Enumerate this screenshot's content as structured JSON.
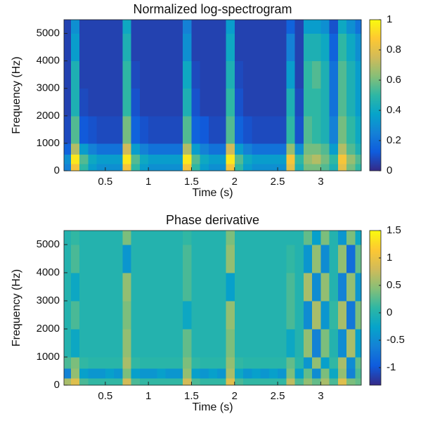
{
  "chart_data": [
    {
      "type": "heatmap",
      "title": "Normalized log-spectrogram",
      "x_label": "Time (s)",
      "y_label": "Frequency (Hz)",
      "colormap": [
        "#352a87",
        "#0f5cdd",
        "#1481d6",
        "#06a4ca",
        "#2eb7a4",
        "#87bf77",
        "#d1bb59",
        "#fec832",
        "#f9fb0e"
      ],
      "x": [
        0.02,
        0.1,
        0.2,
        0.3,
        0.4,
        0.5,
        0.6,
        0.7,
        0.8,
        0.9,
        1.0,
        1.1,
        1.2,
        1.3,
        1.4,
        1.5,
        1.6,
        1.7,
        1.8,
        1.9,
        2.0,
        2.1,
        2.2,
        2.3,
        2.4,
        2.5,
        2.6,
        2.7,
        2.8,
        2.9,
        3.0,
        3.1,
        3.2,
        3.3,
        3.4,
        3.47
      ],
      "y": [
        0,
        250,
        600,
        1000,
        2000,
        3000,
        4000,
        5000,
        5500
      ],
      "z": [
        [
          0.25,
          0.85,
          0.5,
          0.35,
          0.3,
          0.3,
          0.3,
          0.85,
          0.5,
          0.35,
          0.3,
          0.3,
          0.3,
          0.3,
          0.85,
          0.5,
          0.35,
          0.3,
          0.3,
          0.85,
          0.5,
          0.35,
          0.3,
          0.3,
          0.3,
          0.3,
          0.8,
          0.45,
          0.6,
          0.6,
          0.55,
          0.45,
          0.8,
          0.6,
          0.5
        ],
        [
          0.3,
          0.95,
          0.55,
          0.4,
          0.35,
          0.35,
          0.35,
          0.95,
          0.55,
          0.4,
          0.35,
          0.35,
          0.35,
          0.35,
          0.95,
          0.55,
          0.4,
          0.35,
          0.35,
          0.95,
          0.55,
          0.4,
          0.35,
          0.35,
          0.35,
          0.35,
          0.85,
          0.5,
          0.65,
          0.7,
          0.6,
          0.5,
          0.85,
          0.65,
          0.55
        ],
        [
          0.15,
          0.7,
          0.35,
          0.25,
          0.2,
          0.2,
          0.2,
          0.75,
          0.35,
          0.25,
          0.2,
          0.2,
          0.2,
          0.2,
          0.7,
          0.35,
          0.25,
          0.2,
          0.2,
          0.75,
          0.35,
          0.25,
          0.2,
          0.2,
          0.2,
          0.2,
          0.65,
          0.3,
          0.6,
          0.6,
          0.55,
          0.35,
          0.7,
          0.55,
          0.45
        ],
        [
          0.08,
          0.55,
          0.12,
          0.1,
          0.08,
          0.08,
          0.08,
          0.6,
          0.15,
          0.1,
          0.08,
          0.08,
          0.08,
          0.08,
          0.55,
          0.15,
          0.12,
          0.08,
          0.08,
          0.55,
          0.15,
          0.1,
          0.08,
          0.08,
          0.08,
          0.08,
          0.5,
          0.1,
          0.55,
          0.5,
          0.45,
          0.25,
          0.6,
          0.5,
          0.4
        ],
        [
          0.06,
          0.45,
          0.08,
          0.06,
          0.06,
          0.06,
          0.06,
          0.5,
          0.1,
          0.06,
          0.06,
          0.06,
          0.06,
          0.06,
          0.45,
          0.1,
          0.06,
          0.06,
          0.06,
          0.5,
          0.1,
          0.06,
          0.06,
          0.06,
          0.06,
          0.06,
          0.45,
          0.08,
          0.5,
          0.5,
          0.45,
          0.2,
          0.55,
          0.45,
          0.35
        ],
        [
          0.06,
          0.45,
          0.06,
          0.06,
          0.06,
          0.06,
          0.06,
          0.5,
          0.08,
          0.06,
          0.06,
          0.06,
          0.06,
          0.06,
          0.4,
          0.08,
          0.06,
          0.06,
          0.06,
          0.45,
          0.08,
          0.06,
          0.06,
          0.06,
          0.06,
          0.06,
          0.35,
          0.06,
          0.5,
          0.55,
          0.45,
          0.2,
          0.55,
          0.45,
          0.35
        ],
        [
          0.06,
          0.35,
          0.06,
          0.06,
          0.06,
          0.06,
          0.06,
          0.45,
          0.06,
          0.06,
          0.06,
          0.06,
          0.06,
          0.06,
          0.3,
          0.06,
          0.06,
          0.06,
          0.06,
          0.4,
          0.06,
          0.06,
          0.06,
          0.06,
          0.06,
          0.06,
          0.25,
          0.06,
          0.45,
          0.45,
          0.4,
          0.15,
          0.5,
          0.4,
          0.3
        ],
        [
          0.06,
          0.3,
          0.06,
          0.06,
          0.06,
          0.06,
          0.06,
          0.4,
          0.06,
          0.06,
          0.06,
          0.06,
          0.06,
          0.06,
          0.25,
          0.06,
          0.06,
          0.06,
          0.06,
          0.35,
          0.06,
          0.06,
          0.06,
          0.06,
          0.06,
          0.06,
          0.15,
          0.06,
          0.35,
          0.35,
          0.3,
          0.1,
          0.4,
          0.3,
          0.2
        ]
      ],
      "xlim": [
        0.02,
        3.47
      ],
      "ylim": [
        0,
        5500
      ],
      "xticks": [
        0.5,
        1,
        1.5,
        2,
        2.5,
        3
      ],
      "yticks": [
        0,
        1000,
        2000,
        3000,
        4000,
        5000
      ],
      "clim": [
        0,
        1
      ],
      "cticks": [
        0,
        0.2,
        0.4,
        0.6,
        0.8,
        1
      ]
    },
    {
      "type": "heatmap",
      "title": "Phase derivative",
      "x_label": "Time (s)",
      "y_label": "Frequency (Hz)",
      "colormap": [
        "#352a87",
        "#0f5cdd",
        "#1481d6",
        "#06a4ca",
        "#2eb7a4",
        "#87bf77",
        "#d1bb59",
        "#fec832",
        "#f9fb0e"
      ],
      "x": [
        0.02,
        0.1,
        0.2,
        0.3,
        0.4,
        0.5,
        0.6,
        0.7,
        0.8,
        0.9,
        1.0,
        1.1,
        1.2,
        1.3,
        1.4,
        1.5,
        1.6,
        1.7,
        1.8,
        1.9,
        2.0,
        2.1,
        2.2,
        2.3,
        2.4,
        2.5,
        2.6,
        2.7,
        2.8,
        2.9,
        3.0,
        3.1,
        3.2,
        3.3,
        3.4,
        3.47
      ],
      "y": [
        0,
        250,
        600,
        1000,
        2000,
        3000,
        4000,
        5000,
        5500
      ],
      "z": [
        [
          0.6,
          0.9,
          0.2,
          0.1,
          0.1,
          0.1,
          0.1,
          0.8,
          0.2,
          0.1,
          0.1,
          0.1,
          0.1,
          0.1,
          0.8,
          0.2,
          0.1,
          0.1,
          0.1,
          0.9,
          0.2,
          0.1,
          0.1,
          0.1,
          0.1,
          0.1,
          0.7,
          0.2,
          0.5,
          0.3,
          0.6,
          0.2,
          0.9,
          0.4,
          0.3
        ],
        [
          -0.6,
          0.5,
          -0.3,
          -0.4,
          -0.4,
          -0.3,
          -0.4,
          0.4,
          -0.3,
          -0.4,
          -0.4,
          -0.3,
          -0.4,
          -0.4,
          0.5,
          -0.3,
          -0.4,
          -0.3,
          -0.4,
          0.6,
          -0.2,
          -0.4,
          -0.3,
          -0.4,
          -0.3,
          -0.4,
          0.4,
          -0.3,
          0.3,
          -0.5,
          0.4,
          -0.2,
          0.5,
          -0.6,
          0.2
        ],
        [
          0.2,
          0.4,
          0.1,
          0.05,
          0.05,
          0.05,
          0.05,
          0.6,
          0.1,
          0.05,
          0.05,
          0.05,
          0.05,
          0.05,
          0.4,
          0.1,
          0.05,
          0.05,
          0.05,
          0.5,
          0.1,
          0.05,
          0.05,
          0.05,
          0.05,
          0.05,
          0.3,
          0.05,
          -0.4,
          0.5,
          -0.3,
          0.1,
          0.6,
          -0.5,
          0.3
        ],
        [
          0,
          -0.2,
          0,
          0,
          0,
          0,
          0,
          0.5,
          0,
          0,
          0,
          0,
          0,
          0,
          0.3,
          0,
          0,
          0,
          0,
          0.4,
          0,
          0,
          0,
          0,
          0,
          0,
          -0.2,
          0,
          0.5,
          -0.6,
          0.4,
          0,
          -0.5,
          0.6,
          -0.3
        ],
        [
          0,
          0.2,
          0,
          0,
          0,
          0,
          0,
          0.4,
          0,
          0,
          0,
          0,
          0,
          0,
          -0.2,
          0,
          0,
          0,
          0,
          0.5,
          0,
          0,
          0,
          0,
          0,
          0,
          0.2,
          0,
          -0.5,
          0.6,
          -0.4,
          0.1,
          0.6,
          -0.7,
          0.4
        ],
        [
          0,
          -0.2,
          0,
          0,
          0,
          0,
          0,
          0.5,
          0,
          0,
          0,
          0,
          0,
          0,
          0.2,
          0,
          0,
          0,
          0,
          -0.3,
          0,
          0,
          0,
          0,
          0,
          0,
          0.2,
          0,
          0.6,
          -0.5,
          0.5,
          0,
          -0.6,
          0.5,
          -0.4
        ],
        [
          0,
          0.2,
          0,
          0,
          0,
          0,
          0,
          -0.4,
          0,
          0,
          0,
          0,
          0,
          0,
          0.2,
          0,
          0,
          0,
          0,
          0.5,
          0,
          0,
          0,
          0,
          0,
          0,
          0.1,
          0,
          -0.4,
          0.5,
          -0.5,
          0,
          0.5,
          -0.8,
          0.3
        ],
        [
          0,
          0.1,
          0,
          0,
          0,
          0,
          0,
          0.4,
          0,
          0,
          0,
          0,
          0,
          0,
          0.1,
          0,
          0,
          0,
          0,
          0.4,
          0,
          0,
          0,
          0,
          0,
          0,
          0,
          0,
          0.3,
          -0.3,
          0.4,
          0,
          -0.4,
          0.4,
          -0.2
        ]
      ],
      "xlim": [
        0.02,
        3.47
      ],
      "ylim": [
        0,
        5500
      ],
      "xticks": [
        0.5,
        1,
        1.5,
        2,
        2.5,
        3
      ],
      "yticks": [
        0,
        1000,
        2000,
        3000,
        4000,
        5000
      ],
      "clim": [
        -1.32,
        1.5
      ],
      "cticks": [
        -1,
        -0.5,
        0,
        0.5,
        1,
        1.5
      ]
    }
  ]
}
